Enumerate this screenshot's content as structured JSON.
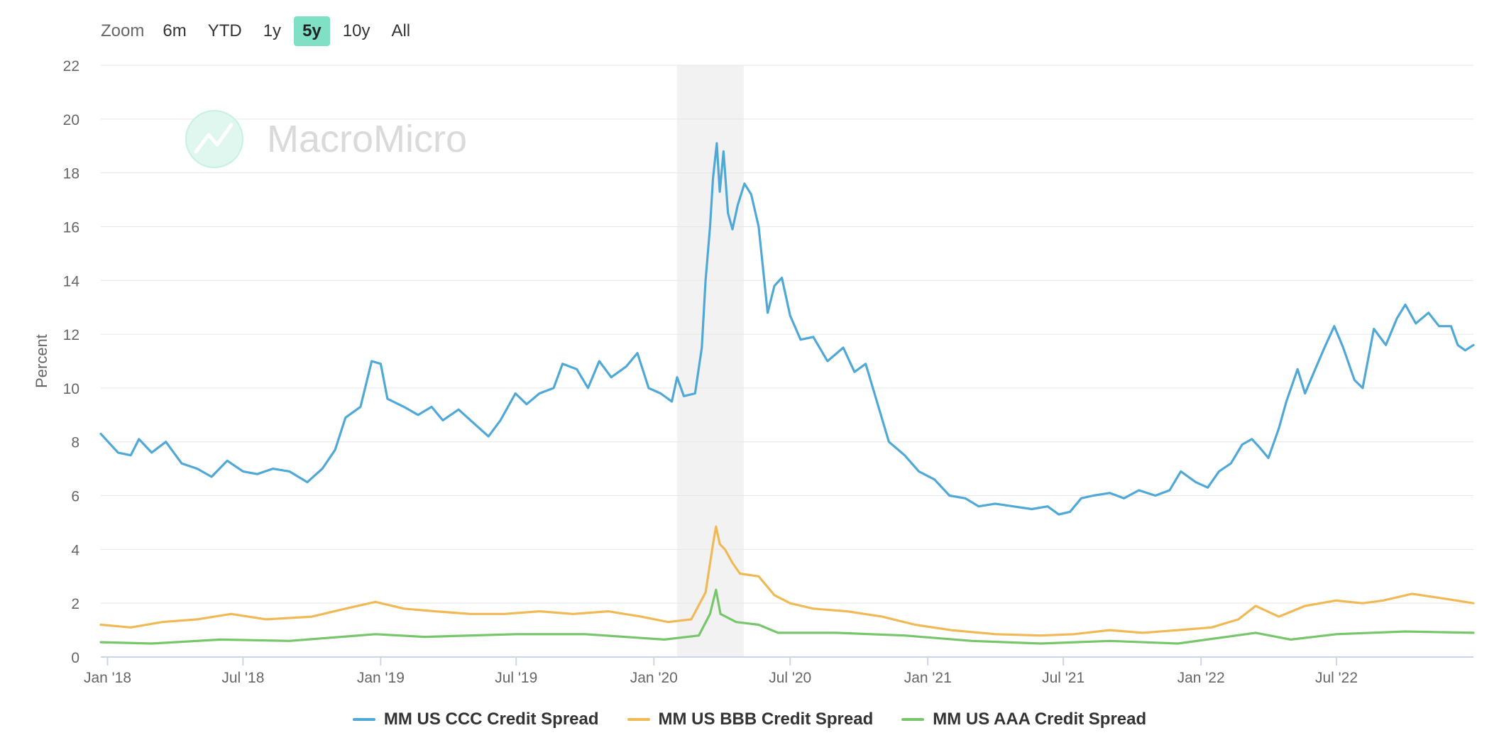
{
  "zoom": {
    "label": "Zoom",
    "buttons": [
      "6m",
      "YTD",
      "1y",
      "5y",
      "10y",
      "All"
    ],
    "active": "5y"
  },
  "watermark": "MacroMicro",
  "colors": {
    "ccc": "#4fa8d6",
    "bbb": "#f0b955",
    "aaa": "#77c66b",
    "recession_band": "#f2f2f2",
    "zoom_active": "#7fe0c5"
  },
  "chart_data": {
    "type": "line",
    "title": "",
    "ylabel": "Percent",
    "ylim": [
      0,
      22
    ],
    "yticks": [
      0,
      2,
      4,
      6,
      8,
      10,
      12,
      14,
      16,
      18,
      20,
      22
    ],
    "xlim": [
      "2017-12-23",
      "2022-12-31"
    ],
    "xticks": [
      {
        "date": "2018-01-01",
        "label": "Jan '18"
      },
      {
        "date": "2018-07-01",
        "label": "Jul '18"
      },
      {
        "date": "2019-01-01",
        "label": "Jan '19"
      },
      {
        "date": "2019-07-01",
        "label": "Jul '19"
      },
      {
        "date": "2020-01-01",
        "label": "Jan '20"
      },
      {
        "date": "2020-07-01",
        "label": "Jul '20"
      },
      {
        "date": "2021-01-01",
        "label": "Jan '21"
      },
      {
        "date": "2021-07-01",
        "label": "Jul '21"
      },
      {
        "date": "2022-01-01",
        "label": "Jan '22"
      },
      {
        "date": "2022-07-01",
        "label": "Jul '22"
      }
    ],
    "shaded_range": [
      "2020-02-01",
      "2020-04-30"
    ],
    "grid": true,
    "legend_position": "bottom-center",
    "series": [
      {
        "name": "MM US CCC Credit Spread",
        "color": "#4fa8d6",
        "points": [
          [
            "2017-12-23",
            8.3
          ],
          [
            "2018-01-15",
            7.6
          ],
          [
            "2018-02-01",
            7.5
          ],
          [
            "2018-02-12",
            8.1
          ],
          [
            "2018-03-01",
            7.6
          ],
          [
            "2018-03-20",
            8.0
          ],
          [
            "2018-04-10",
            7.2
          ],
          [
            "2018-05-01",
            7.0
          ],
          [
            "2018-05-20",
            6.7
          ],
          [
            "2018-06-10",
            7.3
          ],
          [
            "2018-07-01",
            6.9
          ],
          [
            "2018-07-20",
            6.8
          ],
          [
            "2018-08-10",
            7.0
          ],
          [
            "2018-09-01",
            6.9
          ],
          [
            "2018-09-25",
            6.5
          ],
          [
            "2018-10-15",
            7.0
          ],
          [
            "2018-11-01",
            7.7
          ],
          [
            "2018-11-15",
            8.9
          ],
          [
            "2018-12-05",
            9.3
          ],
          [
            "2018-12-20",
            11.0
          ],
          [
            "2019-01-01",
            10.9
          ],
          [
            "2019-01-10",
            9.6
          ],
          [
            "2019-02-01",
            9.3
          ],
          [
            "2019-02-20",
            9.0
          ],
          [
            "2019-03-10",
            9.3
          ],
          [
            "2019-03-25",
            8.8
          ],
          [
            "2019-04-15",
            9.2
          ],
          [
            "2019-05-05",
            8.7
          ],
          [
            "2019-05-25",
            8.2
          ],
          [
            "2019-06-10",
            8.8
          ],
          [
            "2019-06-30",
            9.8
          ],
          [
            "2019-07-15",
            9.4
          ],
          [
            "2019-08-01",
            9.8
          ],
          [
            "2019-08-20",
            10.0
          ],
          [
            "2019-09-01",
            10.9
          ],
          [
            "2019-09-20",
            10.7
          ],
          [
            "2019-10-05",
            10.0
          ],
          [
            "2019-10-20",
            11.0
          ],
          [
            "2019-11-05",
            10.4
          ],
          [
            "2019-11-25",
            10.8
          ],
          [
            "2019-12-10",
            11.3
          ],
          [
            "2019-12-25",
            10.0
          ],
          [
            "2020-01-10",
            9.8
          ],
          [
            "2020-01-25",
            9.5
          ],
          [
            "2020-02-01",
            10.4
          ],
          [
            "2020-02-10",
            9.7
          ],
          [
            "2020-02-25",
            9.8
          ],
          [
            "2020-03-05",
            11.5
          ],
          [
            "2020-03-10",
            14.0
          ],
          [
            "2020-03-16",
            16.0
          ],
          [
            "2020-03-20",
            17.8
          ],
          [
            "2020-03-25",
            19.1
          ],
          [
            "2020-03-29",
            17.3
          ],
          [
            "2020-04-03",
            18.8
          ],
          [
            "2020-04-09",
            16.5
          ],
          [
            "2020-04-15",
            15.9
          ],
          [
            "2020-04-22",
            16.8
          ],
          [
            "2020-05-01",
            17.6
          ],
          [
            "2020-05-10",
            17.2
          ],
          [
            "2020-05-20",
            16.0
          ],
          [
            "2020-06-01",
            12.8
          ],
          [
            "2020-06-10",
            13.8
          ],
          [
            "2020-06-20",
            14.1
          ],
          [
            "2020-07-01",
            12.7
          ],
          [
            "2020-07-15",
            11.8
          ],
          [
            "2020-08-01",
            11.9
          ],
          [
            "2020-08-20",
            11.0
          ],
          [
            "2020-09-10",
            11.5
          ],
          [
            "2020-09-25",
            10.6
          ],
          [
            "2020-10-10",
            10.9
          ],
          [
            "2020-10-25",
            9.5
          ],
          [
            "2020-11-10",
            8.0
          ],
          [
            "2020-12-01",
            7.5
          ],
          [
            "2020-12-20",
            6.9
          ],
          [
            "2021-01-10",
            6.6
          ],
          [
            "2021-01-30",
            6.0
          ],
          [
            "2021-02-20",
            5.9
          ],
          [
            "2021-03-10",
            5.6
          ],
          [
            "2021-04-01",
            5.7
          ],
          [
            "2021-04-25",
            5.6
          ],
          [
            "2021-05-20",
            5.5
          ],
          [
            "2021-06-10",
            5.6
          ],
          [
            "2021-06-25",
            5.3
          ],
          [
            "2021-07-10",
            5.4
          ],
          [
            "2021-07-25",
            5.9
          ],
          [
            "2021-08-10",
            6.0
          ],
          [
            "2021-09-01",
            6.1
          ],
          [
            "2021-09-20",
            5.9
          ],
          [
            "2021-10-10",
            6.2
          ],
          [
            "2021-11-01",
            6.0
          ],
          [
            "2021-11-20",
            6.2
          ],
          [
            "2021-12-05",
            6.9
          ],
          [
            "2021-12-25",
            6.5
          ],
          [
            "2022-01-10",
            6.3
          ],
          [
            "2022-01-25",
            6.9
          ],
          [
            "2022-02-10",
            7.2
          ],
          [
            "2022-02-25",
            7.9
          ],
          [
            "2022-03-10",
            8.1
          ],
          [
            "2022-03-20",
            7.8
          ],
          [
            "2022-04-01",
            7.4
          ],
          [
            "2022-04-15",
            8.5
          ],
          [
            "2022-04-25",
            9.5
          ],
          [
            "2022-05-10",
            10.7
          ],
          [
            "2022-05-20",
            9.8
          ],
          [
            "2022-06-01",
            10.6
          ],
          [
            "2022-06-15",
            11.5
          ],
          [
            "2022-06-28",
            12.3
          ],
          [
            "2022-07-10",
            11.5
          ],
          [
            "2022-07-25",
            10.3
          ],
          [
            "2022-08-05",
            10.0
          ],
          [
            "2022-08-20",
            12.2
          ],
          [
            "2022-09-05",
            11.6
          ],
          [
            "2022-09-20",
            12.6
          ],
          [
            "2022-10-01",
            13.1
          ],
          [
            "2022-10-15",
            12.4
          ],
          [
            "2022-11-01",
            12.8
          ],
          [
            "2022-11-15",
            12.3
          ],
          [
            "2022-12-01",
            12.3
          ],
          [
            "2022-12-10",
            11.6
          ],
          [
            "2022-12-20",
            11.4
          ],
          [
            "2022-12-31",
            11.6
          ]
        ]
      },
      {
        "name": "MM US BBB Credit Spread",
        "color": "#f0b955",
        "points": [
          [
            "2017-12-23",
            1.2
          ],
          [
            "2018-02-01",
            1.1
          ],
          [
            "2018-03-15",
            1.3
          ],
          [
            "2018-05-01",
            1.4
          ],
          [
            "2018-06-15",
            1.6
          ],
          [
            "2018-08-01",
            1.4
          ],
          [
            "2018-10-01",
            1.5
          ],
          [
            "2018-11-15",
            1.8
          ],
          [
            "2018-12-25",
            2.05
          ],
          [
            "2019-02-01",
            1.8
          ],
          [
            "2019-03-15",
            1.7
          ],
          [
            "2019-05-01",
            1.6
          ],
          [
            "2019-06-15",
            1.6
          ],
          [
            "2019-08-01",
            1.7
          ],
          [
            "2019-09-15",
            1.6
          ],
          [
            "2019-11-01",
            1.7
          ],
          [
            "2019-12-15",
            1.5
          ],
          [
            "2020-01-20",
            1.3
          ],
          [
            "2020-02-20",
            1.4
          ],
          [
            "2020-03-10",
            2.4
          ],
          [
            "2020-03-20",
            4.2
          ],
          [
            "2020-03-24",
            4.85
          ],
          [
            "2020-03-29",
            4.2
          ],
          [
            "2020-04-05",
            4.0
          ],
          [
            "2020-04-15",
            3.5
          ],
          [
            "2020-04-25",
            3.1
          ],
          [
            "2020-05-20",
            3.0
          ],
          [
            "2020-06-10",
            2.3
          ],
          [
            "2020-07-01",
            2.0
          ],
          [
            "2020-08-01",
            1.8
          ],
          [
            "2020-09-15",
            1.7
          ],
          [
            "2020-11-01",
            1.5
          ],
          [
            "2020-12-15",
            1.2
          ],
          [
            "2021-02-01",
            1.0
          ],
          [
            "2021-04-01",
            0.85
          ],
          [
            "2021-06-01",
            0.8
          ],
          [
            "2021-07-15",
            0.85
          ],
          [
            "2021-09-01",
            1.0
          ],
          [
            "2021-10-15",
            0.9
          ],
          [
            "2021-12-01",
            1.0
          ],
          [
            "2022-01-15",
            1.1
          ],
          [
            "2022-02-20",
            1.4
          ],
          [
            "2022-03-15",
            1.9
          ],
          [
            "2022-04-15",
            1.5
          ],
          [
            "2022-05-20",
            1.9
          ],
          [
            "2022-06-30",
            2.1
          ],
          [
            "2022-08-05",
            2.0
          ],
          [
            "2022-09-01",
            2.1
          ],
          [
            "2022-10-10",
            2.35
          ],
          [
            "2022-11-15",
            2.2
          ],
          [
            "2022-12-31",
            2.0
          ]
        ]
      },
      {
        "name": "MM US AAA Credit Spread",
        "color": "#77c66b",
        "points": [
          [
            "2017-12-23",
            0.55
          ],
          [
            "2018-03-01",
            0.5
          ],
          [
            "2018-06-01",
            0.65
          ],
          [
            "2018-09-01",
            0.6
          ],
          [
            "2018-12-25",
            0.85
          ],
          [
            "2019-03-01",
            0.75
          ],
          [
            "2019-07-01",
            0.85
          ],
          [
            "2019-10-01",
            0.85
          ],
          [
            "2020-01-15",
            0.65
          ],
          [
            "2020-03-01",
            0.8
          ],
          [
            "2020-03-16",
            1.6
          ],
          [
            "2020-03-24",
            2.5
          ],
          [
            "2020-03-30",
            1.6
          ],
          [
            "2020-04-20",
            1.3
          ],
          [
            "2020-05-20",
            1.2
          ],
          [
            "2020-06-15",
            0.9
          ],
          [
            "2020-09-01",
            0.9
          ],
          [
            "2020-12-01",
            0.8
          ],
          [
            "2021-03-01",
            0.6
          ],
          [
            "2021-06-01",
            0.5
          ],
          [
            "2021-09-01",
            0.6
          ],
          [
            "2021-12-01",
            0.5
          ],
          [
            "2022-03-15",
            0.9
          ],
          [
            "2022-05-01",
            0.65
          ],
          [
            "2022-07-01",
            0.85
          ],
          [
            "2022-10-01",
            0.95
          ],
          [
            "2022-12-31",
            0.9
          ]
        ]
      }
    ]
  }
}
